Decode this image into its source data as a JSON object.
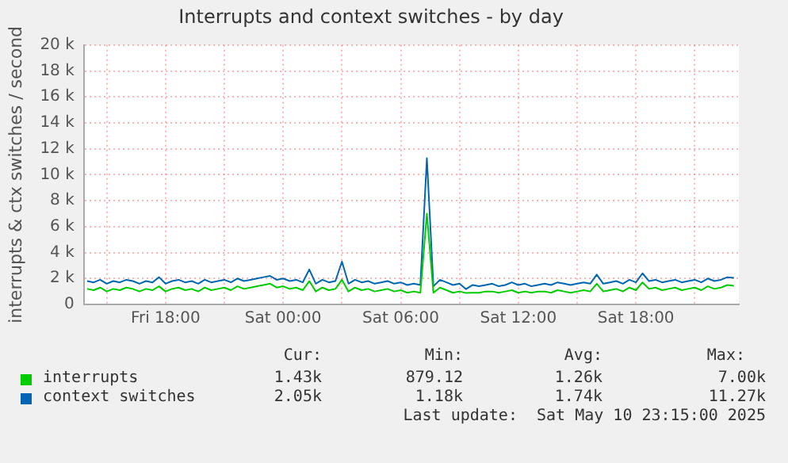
{
  "chart_data": {
    "type": "line",
    "title": "Interrupts and context switches - by day",
    "ylabel": "interrupts & ctx switches / second",
    "x": [
      "2025-05-09T14:00",
      "2025-05-09T14:20",
      "2025-05-09T14:40",
      "2025-05-09T15:00",
      "2025-05-09T15:20",
      "2025-05-09T15:40",
      "2025-05-09T16:00",
      "2025-05-09T16:20",
      "2025-05-09T16:40",
      "2025-05-09T17:00",
      "2025-05-09T17:20",
      "2025-05-09T17:40",
      "2025-05-09T18:00",
      "2025-05-09T18:20",
      "2025-05-09T18:40",
      "2025-05-09T19:00",
      "2025-05-09T19:20",
      "2025-05-09T19:40",
      "2025-05-09T20:00",
      "2025-05-09T20:20",
      "2025-05-09T20:40",
      "2025-05-09T21:00",
      "2025-05-09T21:20",
      "2025-05-09T21:40",
      "2025-05-09T22:00",
      "2025-05-09T22:20",
      "2025-05-09T22:40",
      "2025-05-09T23:00",
      "2025-05-09T23:20",
      "2025-05-09T23:40",
      "2025-05-10T00:00",
      "2025-05-10T00:20",
      "2025-05-10T00:40",
      "2025-05-10T01:00",
      "2025-05-10T01:20",
      "2025-05-10T01:40",
      "2025-05-10T02:00",
      "2025-05-10T02:20",
      "2025-05-10T02:40",
      "2025-05-10T03:00",
      "2025-05-10T03:20",
      "2025-05-10T03:40",
      "2025-05-10T04:00",
      "2025-05-10T04:20",
      "2025-05-10T04:40",
      "2025-05-10T05:00",
      "2025-05-10T05:20",
      "2025-05-10T05:40",
      "2025-05-10T06:00",
      "2025-05-10T06:20",
      "2025-05-10T06:40",
      "2025-05-10T07:00",
      "2025-05-10T07:20",
      "2025-05-10T07:40",
      "2025-05-10T08:00",
      "2025-05-10T08:20",
      "2025-05-10T08:40",
      "2025-05-10T09:00",
      "2025-05-10T09:20",
      "2025-05-10T09:40",
      "2025-05-10T10:00",
      "2025-05-10T10:20",
      "2025-05-10T10:40",
      "2025-05-10T11:00",
      "2025-05-10T11:20",
      "2025-05-10T11:40",
      "2025-05-10T12:00",
      "2025-05-10T12:20",
      "2025-05-10T12:40",
      "2025-05-10T13:00",
      "2025-05-10T13:20",
      "2025-05-10T13:40",
      "2025-05-10T14:00",
      "2025-05-10T14:20",
      "2025-05-10T14:40",
      "2025-05-10T15:00",
      "2025-05-10T15:20",
      "2025-05-10T15:40",
      "2025-05-10T16:00",
      "2025-05-10T16:20",
      "2025-05-10T16:40",
      "2025-05-10T17:00",
      "2025-05-10T17:20",
      "2025-05-10T17:40",
      "2025-05-10T18:00",
      "2025-05-10T18:20",
      "2025-05-10T18:40",
      "2025-05-10T19:00",
      "2025-05-10T19:20",
      "2025-05-10T19:40",
      "2025-05-10T20:00",
      "2025-05-10T20:20",
      "2025-05-10T20:40",
      "2025-05-10T21:00",
      "2025-05-10T21:20",
      "2025-05-10T21:40",
      "2025-05-10T22:00",
      "2025-05-10T22:20",
      "2025-05-10T22:40",
      "2025-05-10T23:00"
    ],
    "series": [
      {
        "name": "interrupts",
        "color": "#00cc00",
        "values": [
          1.2,
          1.1,
          1.3,
          1.0,
          1.2,
          1.1,
          1.3,
          1.2,
          1.0,
          1.2,
          1.1,
          1.4,
          1.0,
          1.2,
          1.3,
          1.1,
          1.2,
          1.0,
          1.3,
          1.1,
          1.2,
          1.3,
          1.1,
          1.4,
          1.2,
          1.3,
          1.4,
          1.5,
          1.6,
          1.3,
          1.4,
          1.2,
          1.3,
          1.1,
          1.8,
          1.0,
          1.3,
          1.1,
          1.2,
          1.9,
          1.0,
          1.3,
          1.1,
          1.2,
          1.0,
          1.1,
          1.2,
          1.0,
          1.1,
          0.9,
          1.0,
          0.9,
          7.0,
          0.9,
          1.3,
          1.1,
          0.9,
          1.0,
          0.879,
          0.9,
          0.9,
          1.0,
          1.0,
          0.9,
          1.0,
          1.1,
          0.9,
          1.0,
          0.9,
          1.0,
          1.0,
          0.9,
          1.1,
          1.0,
          0.9,
          1.0,
          1.1,
          1.0,
          1.6,
          1.0,
          1.1,
          1.2,
          1.0,
          1.3,
          1.1,
          1.7,
          1.2,
          1.3,
          1.1,
          1.2,
          1.3,
          1.1,
          1.2,
          1.3,
          1.1,
          1.4,
          1.2,
          1.3,
          1.5,
          1.43
        ]
      },
      {
        "name": "context switches",
        "color": "#0066b3",
        "values": [
          1.8,
          1.7,
          1.9,
          1.6,
          1.8,
          1.7,
          1.9,
          1.8,
          1.6,
          1.8,
          1.7,
          2.1,
          1.6,
          1.8,
          1.9,
          1.7,
          1.8,
          1.6,
          1.9,
          1.7,
          1.8,
          1.9,
          1.7,
          2.0,
          1.8,
          1.9,
          2.0,
          2.1,
          2.2,
          1.9,
          2.0,
          1.8,
          1.9,
          1.7,
          2.7,
          1.6,
          1.9,
          1.7,
          1.8,
          3.3,
          1.6,
          1.9,
          1.7,
          1.8,
          1.6,
          1.7,
          1.8,
          1.6,
          1.7,
          1.5,
          1.6,
          1.5,
          11.27,
          1.4,
          1.9,
          1.7,
          1.5,
          1.6,
          1.18,
          1.5,
          1.4,
          1.5,
          1.6,
          1.4,
          1.5,
          1.7,
          1.5,
          1.6,
          1.4,
          1.5,
          1.6,
          1.5,
          1.7,
          1.6,
          1.5,
          1.6,
          1.7,
          1.6,
          2.3,
          1.6,
          1.7,
          1.8,
          1.6,
          1.9,
          1.7,
          2.4,
          1.8,
          1.9,
          1.7,
          1.8,
          1.9,
          1.7,
          1.8,
          1.9,
          1.7,
          2.0,
          1.8,
          1.9,
          2.1,
          2.05
        ]
      }
    ],
    "xlim": [
      "2025-05-09T13:50",
      "2025-05-10T23:15"
    ],
    "xticks": [
      {
        "value": "2025-05-09T15:00",
        "label": null
      },
      {
        "value": "2025-05-09T18:00",
        "label": "Fri 18:00"
      },
      {
        "value": "2025-05-09T21:00",
        "label": null
      },
      {
        "value": "2025-05-10T00:00",
        "label": "Sat 00:00"
      },
      {
        "value": "2025-05-10T03:00",
        "label": null
      },
      {
        "value": "2025-05-10T06:00",
        "label": "Sat 06:00"
      },
      {
        "value": "2025-05-10T09:00",
        "label": null
      },
      {
        "value": "2025-05-10T12:00",
        "label": "Sat 12:00"
      },
      {
        "value": "2025-05-10T15:00",
        "label": null
      },
      {
        "value": "2025-05-10T18:00",
        "label": "Sat 18:00"
      },
      {
        "value": "2025-05-10T21:00",
        "label": null
      }
    ],
    "ylim": [
      0,
      20
    ],
    "yticks": [
      0,
      {
        "value": 2,
        "label": "2 k"
      },
      {
        "value": 4,
        "label": "4 k"
      },
      {
        "value": 6,
        "label": "6 k"
      },
      {
        "value": 8,
        "label": "8 k"
      },
      {
        "value": 10,
        "label": "10 k"
      },
      {
        "value": 12,
        "label": "12 k"
      },
      {
        "value": 14,
        "label": "14 k"
      },
      {
        "value": 16,
        "label": "16 k"
      },
      {
        "value": 18,
        "label": "18 k"
      },
      {
        "value": 20,
        "label": "20 k"
      }
    ],
    "grid": true,
    "legend": "bottom",
    "annotations": [
      "Cur:",
      "Min:",
      "Avg:",
      "Max:",
      "1.43k",
      "879.12",
      "1.26k",
      "7.00k",
      "2.05k",
      "1.18k",
      "1.74k",
      "11.27k",
      "Last update:  Sat May 10 23:15:00 2025"
    ]
  }
}
